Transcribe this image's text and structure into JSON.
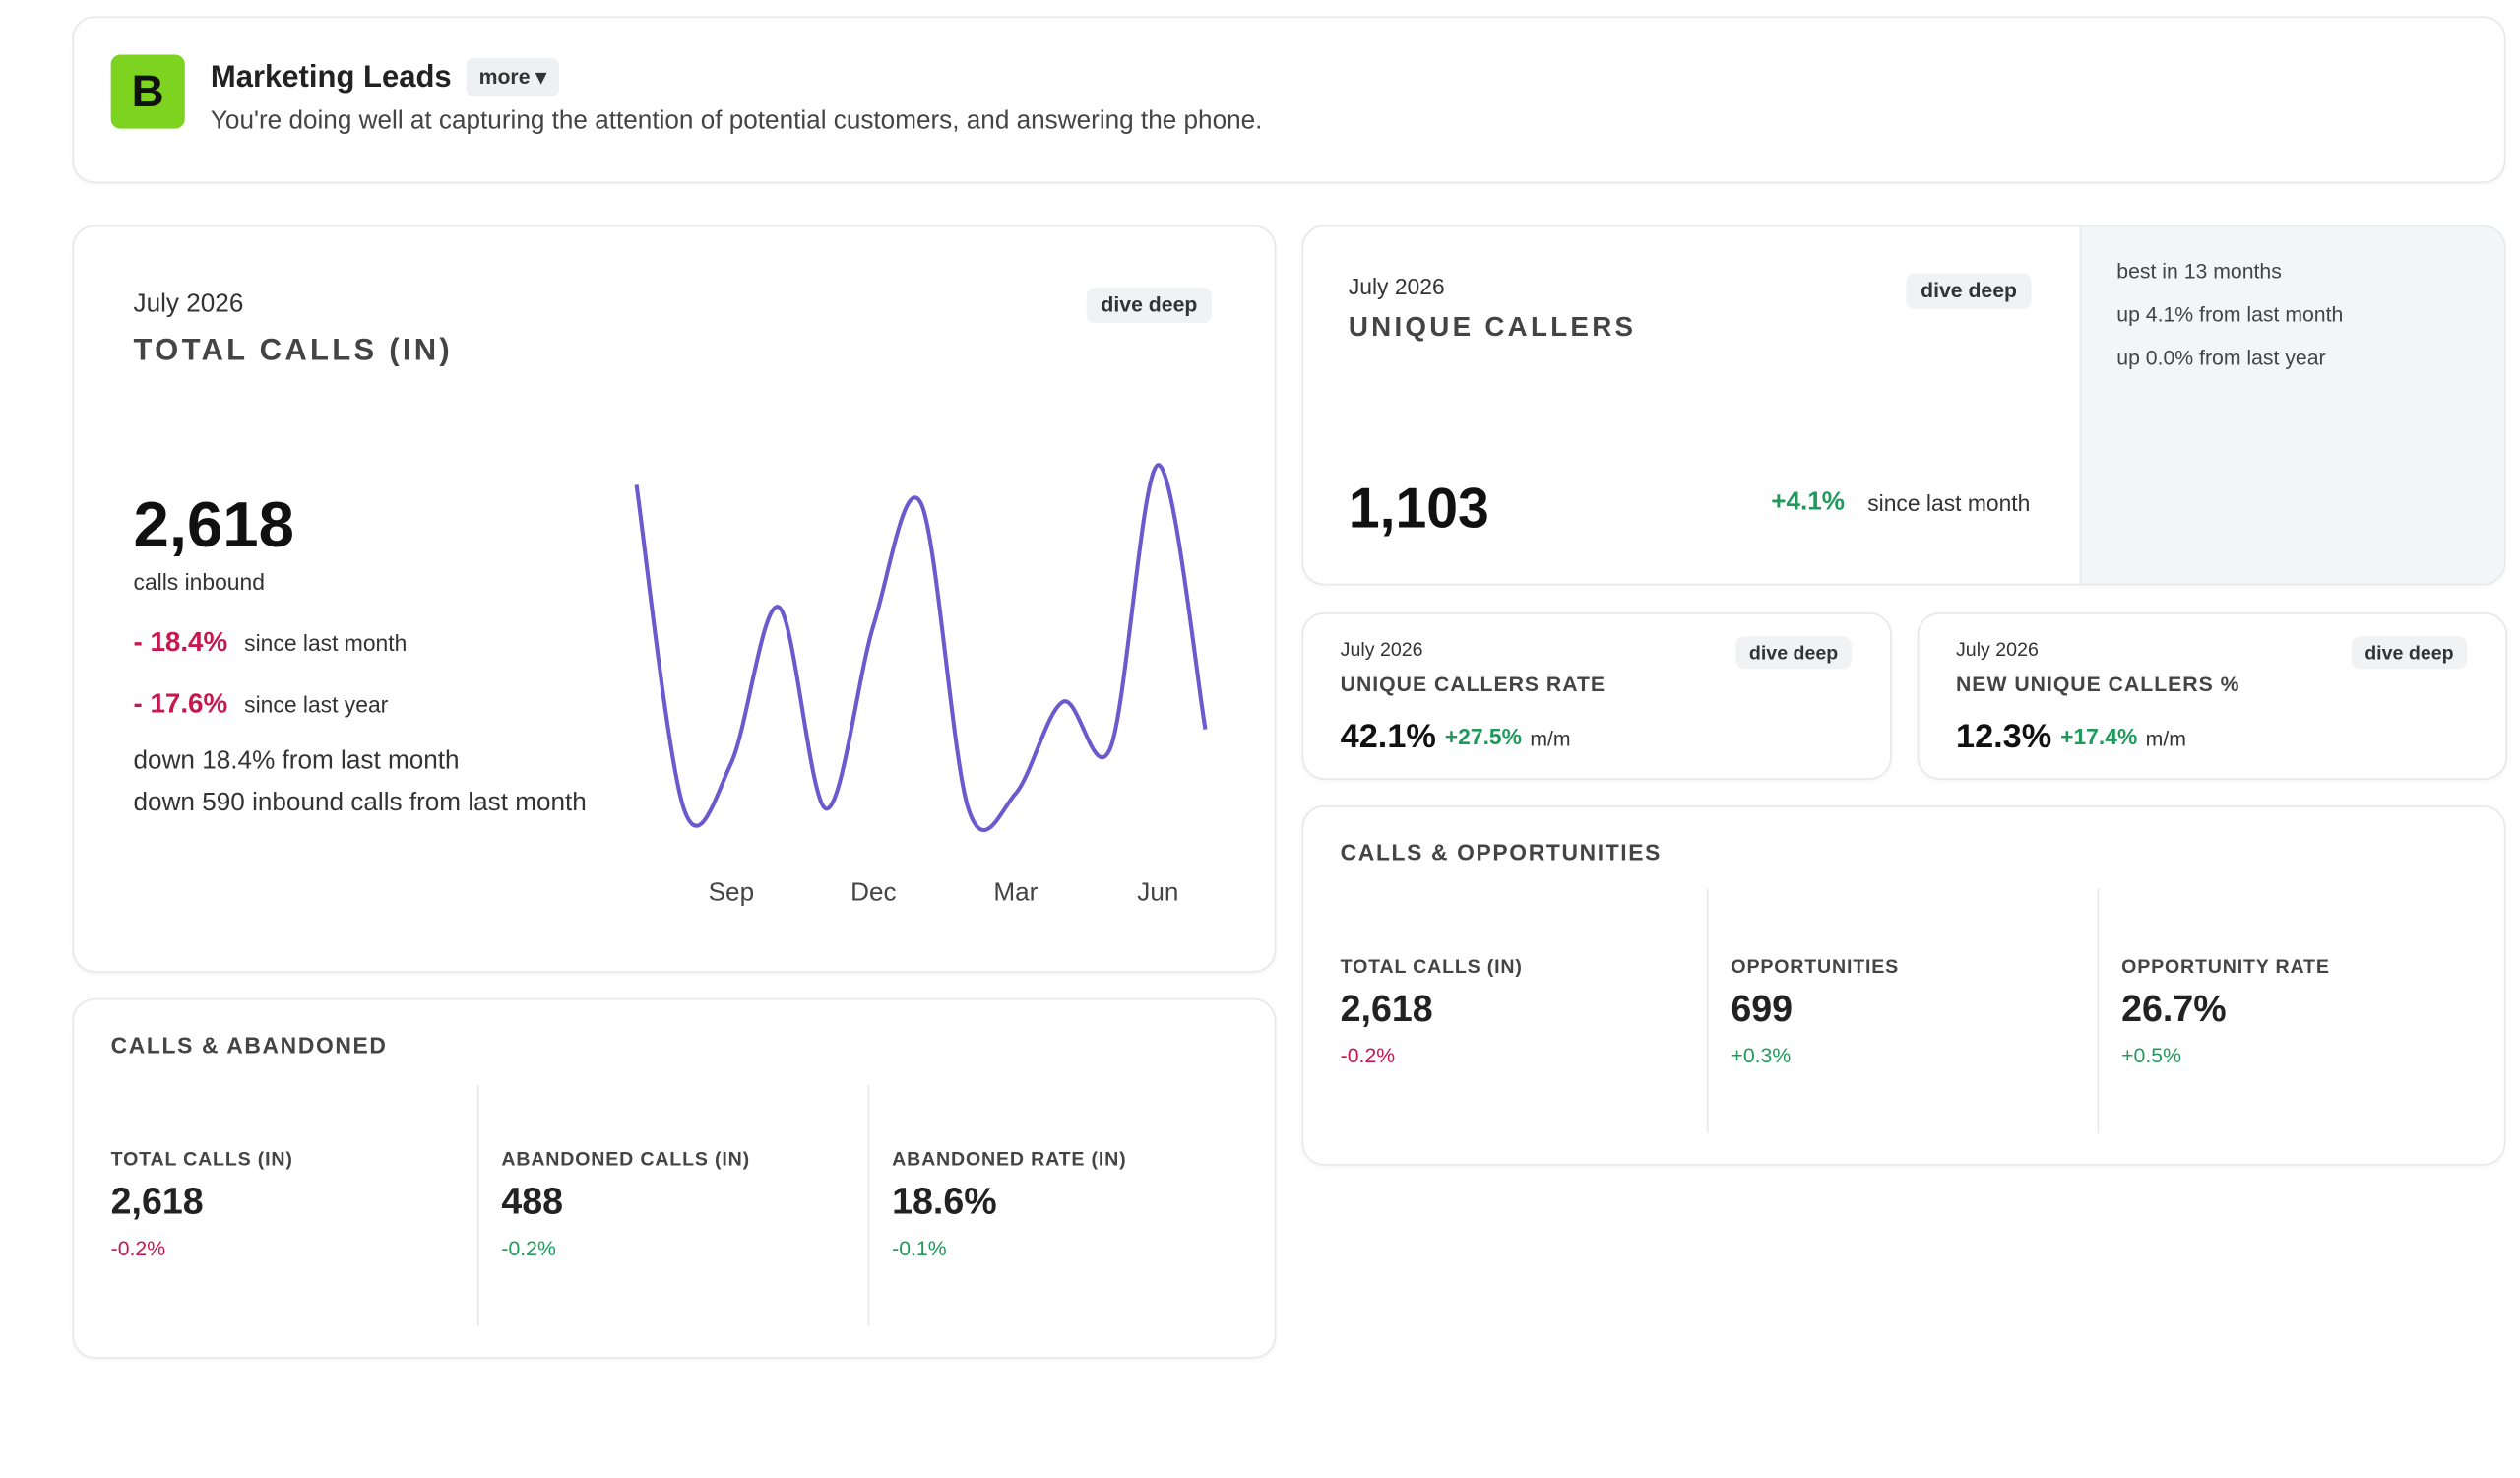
{
  "header": {
    "logo": "B",
    "title": "Marketing Leads",
    "more": "more ▾",
    "subtitle": "You're doing well at capturing the attention of potential customers, and answering the phone."
  },
  "total_calls": {
    "period": "July 2026",
    "title": "TOTAL CALLS (IN)",
    "dive": "dive deep",
    "value": "2,618",
    "unit": "calls inbound",
    "changes": [
      {
        "value": "- 18.4%",
        "label": "since last month",
        "color": "#c8174f"
      },
      {
        "value": "- 17.6%",
        "label": "since last year",
        "color": "#c8174f"
      }
    ],
    "notes": [
      "down 18.4% from last month",
      "down 590 inbound calls from last month"
    ]
  },
  "chart_data": {
    "type": "line",
    "categories": [
      null,
      null,
      "Sep",
      null,
      null,
      "Dec",
      null,
      null,
      "Mar",
      null,
      null,
      "Jun",
      null
    ],
    "values": [
      272,
      60,
      90,
      192,
      60,
      180,
      260,
      60,
      70,
      130,
      100,
      285,
      112
    ],
    "ylim": [
      0,
      300
    ],
    "color": "#6a5acd"
  },
  "unique_callers": {
    "period": "July 2026",
    "title": "UNIQUE CALLERS",
    "dive": "dive deep",
    "value": "1,103",
    "change": "+4.1%",
    "change_label": "since last month",
    "color": "#1e9a5a",
    "notes": [
      "best in 13 months",
      "up 4.1% from last month",
      "up 0.0% from last year"
    ]
  },
  "rate_cards": [
    {
      "period": "July 2026",
      "title": "UNIQUE CALLERS RATE",
      "dive": "dive deep",
      "value": "42.1%",
      "change": "+27.5%",
      "unit": "m/m",
      "color": "#1e9a5a"
    },
    {
      "period": "July 2026",
      "title": "NEW UNIQUE CALLERS %",
      "dive": "dive deep",
      "value": "12.3%",
      "change": "+17.4%",
      "unit": "m/m",
      "color": "#1e9a5a"
    }
  ],
  "opportunities": {
    "title": "CALLS & OPPORTUNITIES",
    "metrics": [
      {
        "label": "TOTAL CALLS (IN)",
        "value": "2,618",
        "change": "-0.2%",
        "color": "#c8174f"
      },
      {
        "label": "OPPORTUNITIES",
        "value": "699",
        "change": "+0.3%",
        "color": "#1e9a5a"
      },
      {
        "label": "OPPORTUNITY RATE",
        "value": "26.7%",
        "change": "+0.5%",
        "color": "#1e9a5a"
      }
    ]
  },
  "abandoned": {
    "title": "CALLS & ABANDONED",
    "metrics": [
      {
        "label": "TOTAL CALLS (IN)",
        "value": "2,618",
        "change": "-0.2%",
        "color": "#c8174f"
      },
      {
        "label": "ABANDONED CALLS (IN)",
        "value": "488",
        "change": "-0.2%",
        "color": "#1e9a5a"
      },
      {
        "label": "ABANDONED RATE (IN)",
        "value": "18.6%",
        "change": "-0.1%",
        "color": "#1e9a5a"
      }
    ]
  }
}
